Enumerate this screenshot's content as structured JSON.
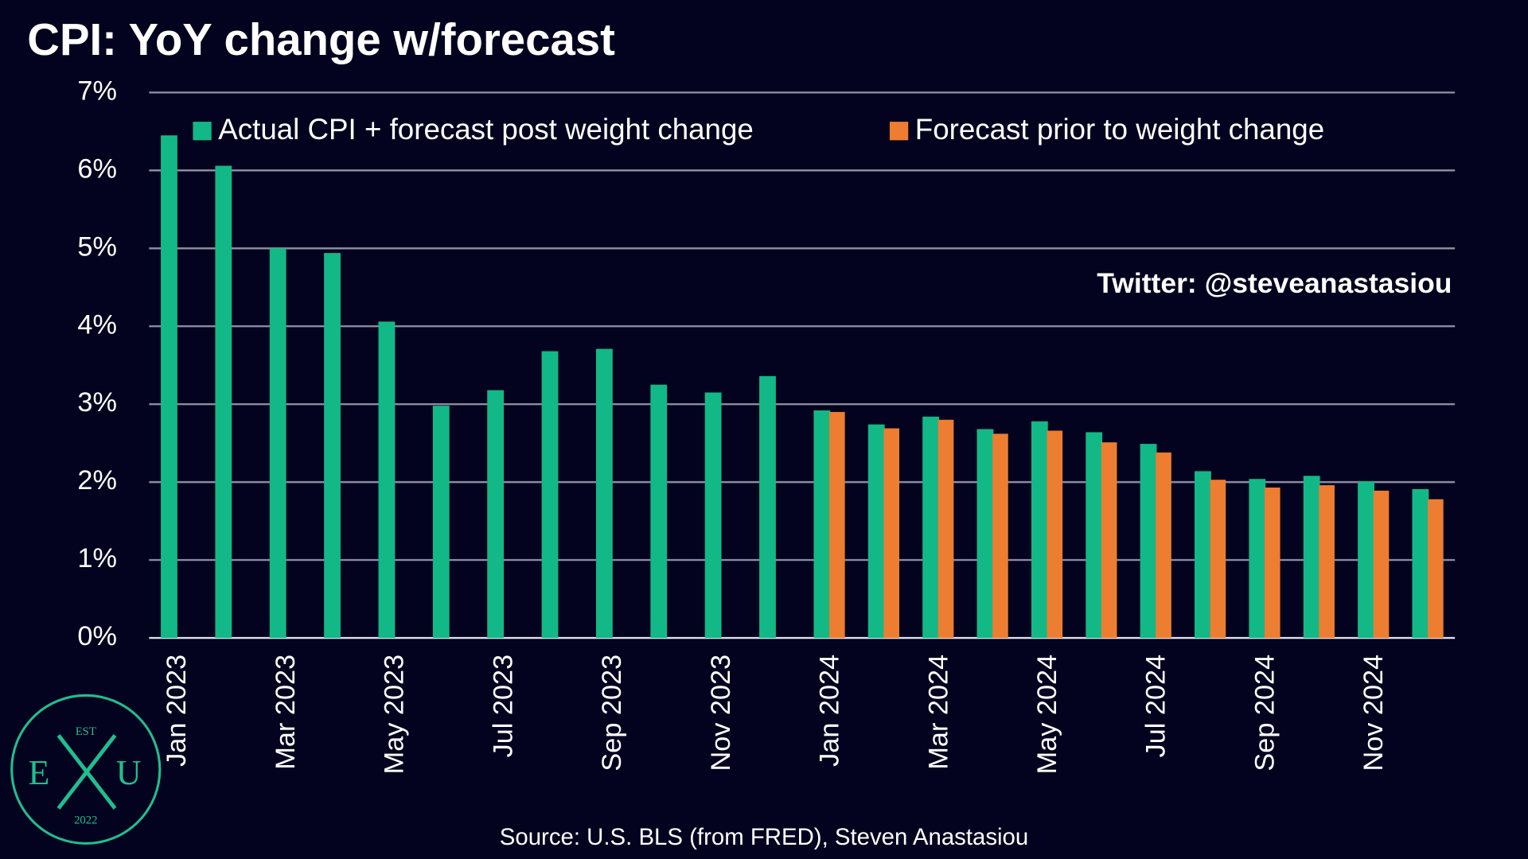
{
  "chart_data": {
    "type": "bar",
    "title": "CPI: YoY change w/forecast",
    "categories": [
      "Jan 2023",
      null,
      "Mar 2023",
      null,
      "May 2023",
      null,
      "Jul 2023",
      null,
      "Sep 2023",
      null,
      "Nov 2023",
      null,
      "Jan 2024",
      null,
      "Mar 2024",
      null,
      "May 2024",
      null,
      "Jul 2024",
      null,
      "Sep 2024",
      null,
      "Nov 2024",
      null
    ],
    "series": [
      {
        "name": "Actual CPI + forecast post weight change",
        "color": "#13b887",
        "values": [
          6.45,
          6.06,
          5.0,
          4.94,
          4.06,
          2.98,
          3.18,
          3.68,
          3.71,
          3.25,
          3.15,
          3.36,
          2.92,
          2.74,
          2.84,
          2.68,
          2.78,
          2.64,
          2.49,
          2.14,
          2.04,
          2.08,
          2.01,
          1.91
        ]
      },
      {
        "name": "Forecast prior to weight change",
        "color": "#ed7d31",
        "values": [
          null,
          null,
          null,
          null,
          null,
          null,
          null,
          null,
          null,
          null,
          null,
          null,
          2.9,
          2.69,
          2.8,
          2.62,
          2.66,
          2.51,
          2.38,
          2.03,
          1.93,
          1.96,
          1.89,
          1.78
        ]
      }
    ],
    "ylim": [
      0,
      7
    ],
    "yticks": [
      {
        "value": 0,
        "label": "0%"
      },
      {
        "value": 1,
        "label": "1%"
      },
      {
        "value": 2,
        "label": "2%"
      },
      {
        "value": 3,
        "label": "3%"
      },
      {
        "value": 4,
        "label": "4%"
      },
      {
        "value": 5,
        "label": "5%"
      },
      {
        "value": 6,
        "label": "6%"
      },
      {
        "value": 7,
        "label": "7%"
      }
    ],
    "grid": true,
    "annotation": "Twitter: @steveanastasiou",
    "source": "Source: U.S. BLS (from FRED), Steven Anastasiou"
  },
  "logo": {
    "top": "EST",
    "left": "E",
    "right": "U",
    "bottom": "2022"
  }
}
